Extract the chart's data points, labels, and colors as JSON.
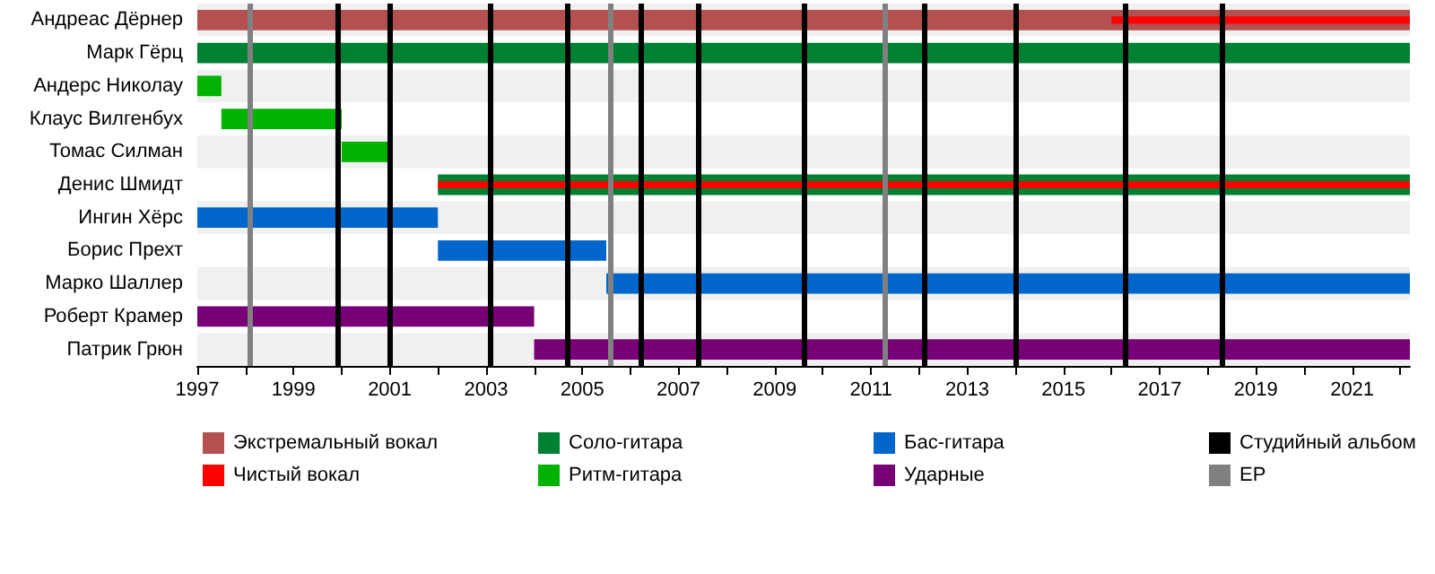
{
  "chart_data": {
    "type": "bar",
    "orientation": "horizontal",
    "categories": [
      "Андреас Дёрнер",
      "Марк Гёрц",
      "Андерс Николау",
      "Клаус Вилгенбух",
      "Томас Силман",
      "Денис Шмидт",
      "Ингин Хёрс",
      "Борис Прехт",
      "Марко Шаллер",
      "Роберт Крамер",
      "Патрик Грюн"
    ],
    "series": [
      {
        "name": "Экстремальный вокал",
        "color": "#b35050",
        "base": [
          1997,
          null,
          null,
          null,
          null,
          null,
          null,
          null,
          null,
          null,
          null
        ],
        "values": [
          25.2,
          null,
          null,
          null,
          null,
          null,
          null,
          null,
          null,
          null,
          null
        ]
      },
      {
        "name": "Чистый вокал",
        "color": "#ff0000",
        "base": [
          2016,
          null,
          null,
          null,
          null,
          2002,
          null,
          null,
          null,
          null,
          null
        ],
        "values": [
          6.2,
          null,
          null,
          null,
          null,
          20.2,
          null,
          null,
          null,
          null,
          null
        ]
      },
      {
        "name": "Соло-гитара",
        "color": "#008033",
        "base": [
          null,
          1997,
          null,
          null,
          null,
          2002,
          null,
          null,
          null,
          null,
          null
        ],
        "values": [
          null,
          25.2,
          null,
          null,
          null,
          20.2,
          null,
          null,
          null,
          null,
          null
        ]
      },
      {
        "name": "Ритм-гитара",
        "color": "#00b300",
        "base": [
          null,
          null,
          1997,
          1997.5,
          2000,
          null,
          null,
          null,
          null,
          null,
          null
        ],
        "values": [
          null,
          null,
          0.5,
          2.5,
          1,
          null,
          null,
          null,
          null,
          null,
          null
        ]
      },
      {
        "name": "Бас-гитара",
        "color": "#0066cc",
        "base": [
          null,
          null,
          null,
          null,
          null,
          null,
          1997,
          2002,
          2005.5,
          null,
          null
        ],
        "values": [
          null,
          null,
          null,
          null,
          null,
          null,
          5,
          3.5,
          16.7,
          null,
          null
        ]
      },
      {
        "name": "Ударные",
        "color": "#770077",
        "base": [
          null,
          null,
          null,
          null,
          null,
          null,
          null,
          null,
          null,
          1997,
          2004
        ],
        "values": [
          null,
          null,
          null,
          null,
          null,
          null,
          null,
          null,
          null,
          7,
          18.2
        ]
      }
    ],
    "ref_lines": [
      {
        "axis": "x",
        "value": 1999.9,
        "label": "Студийный альбом",
        "color": "#000000"
      },
      {
        "axis": "x",
        "value": 2001.0,
        "color": "#000000"
      },
      {
        "axis": "x",
        "value": 2003.1,
        "color": "#000000"
      },
      {
        "axis": "x",
        "value": 2004.7,
        "color": "#000000"
      },
      {
        "axis": "x",
        "value": 2006.2,
        "color": "#000000"
      },
      {
        "axis": "x",
        "value": 2007.4,
        "color": "#000000"
      },
      {
        "axis": "x",
        "value": 2009.6,
        "color": "#000000"
      },
      {
        "axis": "x",
        "value": 2012.1,
        "color": "#000000"
      },
      {
        "axis": "x",
        "value": 2014.0,
        "color": "#000000"
      },
      {
        "axis": "x",
        "value": 2016.3,
        "color": "#000000"
      },
      {
        "axis": "x",
        "value": 2018.3,
        "color": "#000000"
      },
      {
        "axis": "x",
        "value": 1998.1,
        "label": "EP",
        "color": "#808080"
      },
      {
        "axis": "x",
        "value": 2005.6,
        "color": "#808080"
      },
      {
        "axis": "x",
        "value": 2011.3,
        "color": "#808080"
      }
    ],
    "xlim": [
      1997,
      2022.2
    ],
    "xticks": [
      1997,
      {
        "value": 1998,
        "label": null
      },
      1999,
      {
        "value": 2000,
        "label": null
      },
      2001,
      {
        "value": 2002,
        "label": null
      },
      2003,
      {
        "value": 2004,
        "label": null
      },
      2005,
      {
        "value": 2006,
        "label": null
      },
      2007,
      {
        "value": 2008,
        "label": null
      },
      2009,
      {
        "value": 2010,
        "label": null
      },
      2011,
      {
        "value": 2012,
        "label": null
      },
      2013,
      {
        "value": 2014,
        "label": null
      },
      2015,
      {
        "value": 2016,
        "label": null
      },
      2017,
      {
        "value": 2018,
        "label": null
      },
      2019,
      {
        "value": 2020,
        "label": null
      },
      2021,
      {
        "value": 2022,
        "label": null
      }
    ],
    "legend": "bottom"
  }
}
